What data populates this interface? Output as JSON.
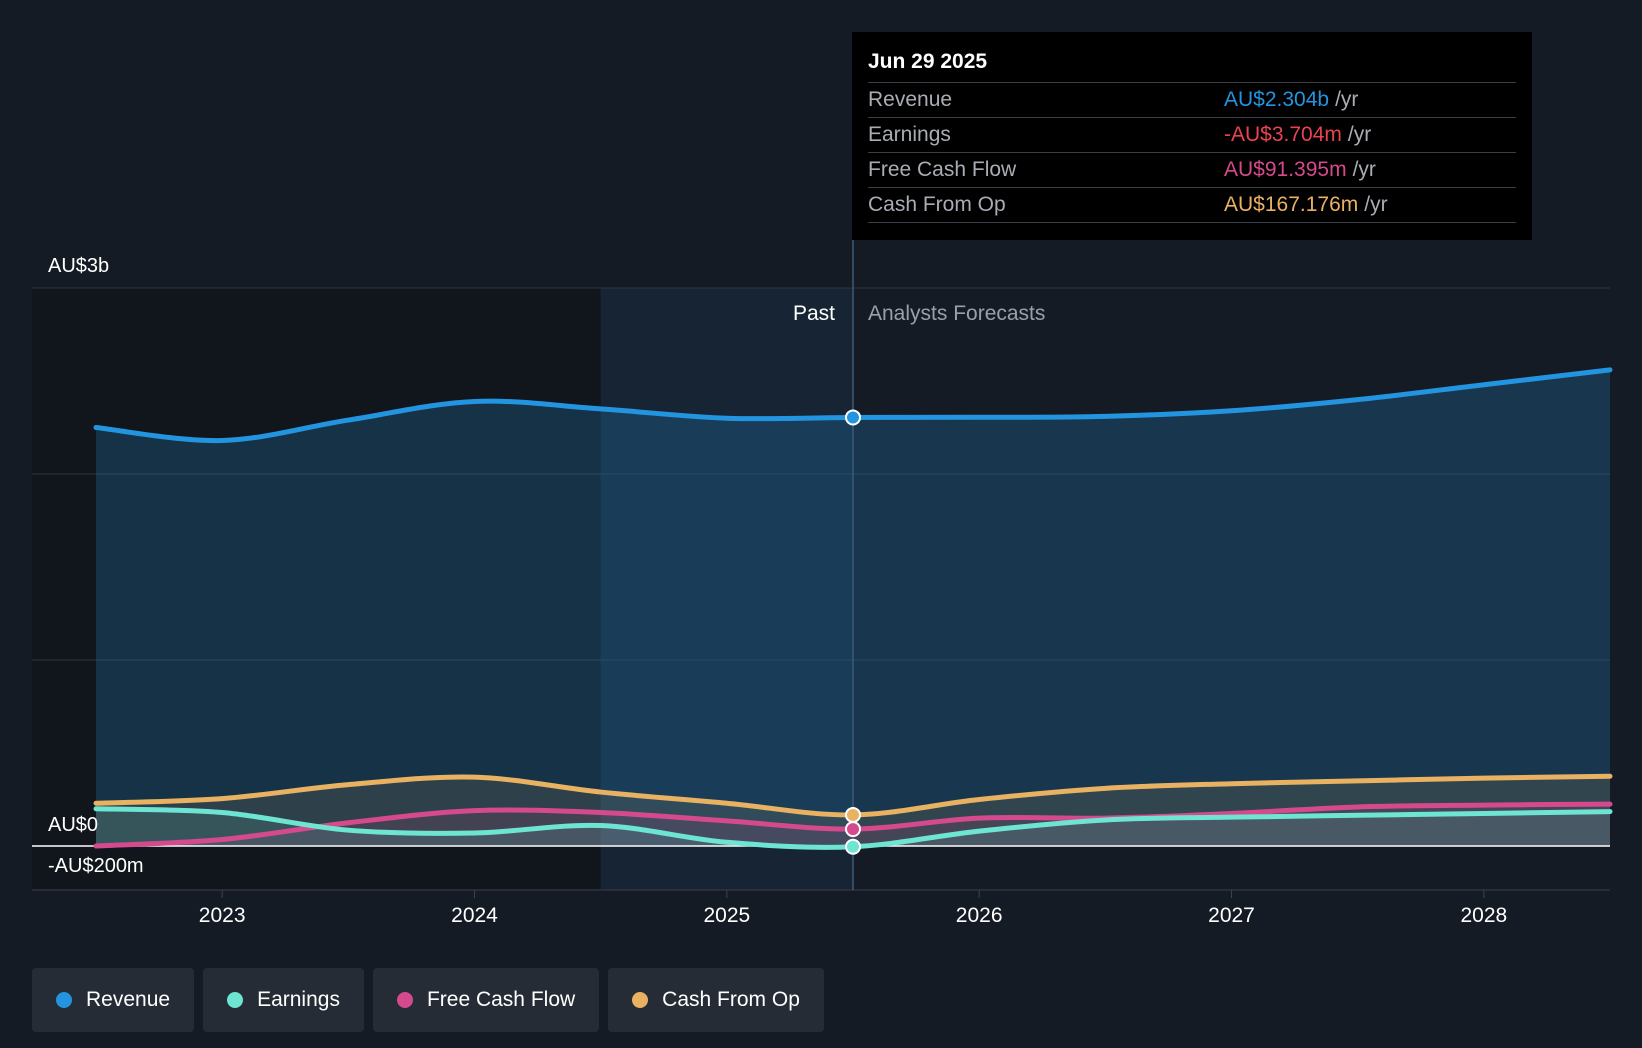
{
  "chart_data": {
    "type": "area",
    "x_ticks": [
      "2023",
      "2024",
      "2025",
      "2026",
      "2027",
      "2028"
    ],
    "y_ticks": [
      {
        "value": 3000,
        "label": "AU$3b"
      },
      {
        "value": 0,
        "label": "AU$0"
      },
      {
        "value": -200,
        "label": "-AU$200m"
      }
    ],
    "ylim": [
      -200,
      3000
    ],
    "units": "AU$ millions",
    "past_label": "Past",
    "forecast_label": "Analysts Forecasts",
    "split_x": 2025.5,
    "highlight_start_x": 2024.5,
    "series": [
      {
        "name": "Revenue",
        "color": "#2394df",
        "points": [
          [
            2022.5,
            2250
          ],
          [
            2023.0,
            2180
          ],
          [
            2023.5,
            2290
          ],
          [
            2024.0,
            2390
          ],
          [
            2024.5,
            2350
          ],
          [
            2025.0,
            2300
          ],
          [
            2025.5,
            2304
          ],
          [
            2026.0,
            2305
          ],
          [
            2026.5,
            2310
          ],
          [
            2027.0,
            2340
          ],
          [
            2027.5,
            2400
          ],
          [
            2028.0,
            2480
          ],
          [
            2028.5,
            2560
          ]
        ]
      },
      {
        "name": "Earnings",
        "color": "#6ee4d3",
        "points": [
          [
            2022.5,
            200
          ],
          [
            2023.0,
            180
          ],
          [
            2023.5,
            85
          ],
          [
            2024.0,
            70
          ],
          [
            2024.5,
            110
          ],
          [
            2025.0,
            20
          ],
          [
            2025.5,
            -4
          ],
          [
            2026.0,
            80
          ],
          [
            2026.5,
            140
          ],
          [
            2027.0,
            155
          ],
          [
            2027.5,
            165
          ],
          [
            2028.0,
            175
          ],
          [
            2028.5,
            185
          ]
        ]
      },
      {
        "name": "Free Cash Flow",
        "color": "#d44a8c",
        "points": [
          [
            2022.5,
            0
          ],
          [
            2023.0,
            35
          ],
          [
            2023.5,
            125
          ],
          [
            2024.0,
            190
          ],
          [
            2024.5,
            180
          ],
          [
            2025.0,
            135
          ],
          [
            2025.5,
            91
          ],
          [
            2026.0,
            150
          ],
          [
            2026.5,
            150
          ],
          [
            2027.0,
            175
          ],
          [
            2027.5,
            210
          ],
          [
            2028.0,
            220
          ],
          [
            2028.5,
            225
          ]
        ]
      },
      {
        "name": "Cash From Op",
        "color": "#e9b162",
        "points": [
          [
            2022.5,
            230
          ],
          [
            2023.0,
            255
          ],
          [
            2023.5,
            330
          ],
          [
            2024.0,
            370
          ],
          [
            2024.5,
            290
          ],
          [
            2025.0,
            230
          ],
          [
            2025.5,
            167
          ],
          [
            2026.0,
            250
          ],
          [
            2026.5,
            310
          ],
          [
            2027.0,
            335
          ],
          [
            2027.5,
            350
          ],
          [
            2028.0,
            365
          ],
          [
            2028.5,
            375
          ]
        ]
      }
    ]
  },
  "tooltip": {
    "date": "Jun 29 2025",
    "unit": "/yr",
    "rows": [
      {
        "label": "Revenue",
        "value": "AU$2.304b",
        "color": "#2394df"
      },
      {
        "label": "Earnings",
        "value": "-AU$3.704m",
        "color": "#e8434f"
      },
      {
        "label": "Free Cash Flow",
        "value": "AU$91.395m",
        "color": "#d44a8c"
      },
      {
        "label": "Cash From Op",
        "value": "AU$167.176m",
        "color": "#e9b162"
      }
    ]
  },
  "legend": [
    {
      "label": "Revenue",
      "color": "#2394df"
    },
    {
      "label": "Earnings",
      "color": "#6ee4d3"
    },
    {
      "label": "Free Cash Flow",
      "color": "#d44a8c"
    },
    {
      "label": "Cash From Op",
      "color": "#e9b162"
    }
  ]
}
